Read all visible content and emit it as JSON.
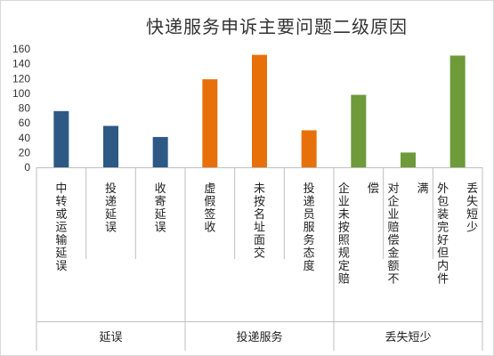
{
  "chart_data": {
    "type": "bar",
    "title": "快递服务申诉主要问题二级原因",
    "ylim": [
      0,
      160
    ],
    "yticks": [
      0,
      20,
      40,
      60,
      80,
      100,
      120,
      140,
      160
    ],
    "grid": false,
    "legend": "none",
    "categories": [
      "中转或运输延误",
      "投递延误",
      "收寄延误",
      "虚假签收",
      "未按名址面交",
      "投递员服务态度",
      "企业未按照规定赔偿",
      "对企业赔偿金额不满",
      "外包装完好但内件丢失短少"
    ],
    "values": [
      76,
      56,
      41,
      119,
      152,
      50,
      98,
      20,
      151
    ],
    "groups": [
      {
        "name": "延误",
        "span": [
          0,
          2
        ],
        "color": "#2e5984"
      },
      {
        "name": "投递服务",
        "span": [
          3,
          5
        ],
        "color": "#e8700a"
      },
      {
        "name": "丢失短少",
        "span": [
          6,
          8
        ],
        "color": "#6e9a3a"
      }
    ]
  }
}
